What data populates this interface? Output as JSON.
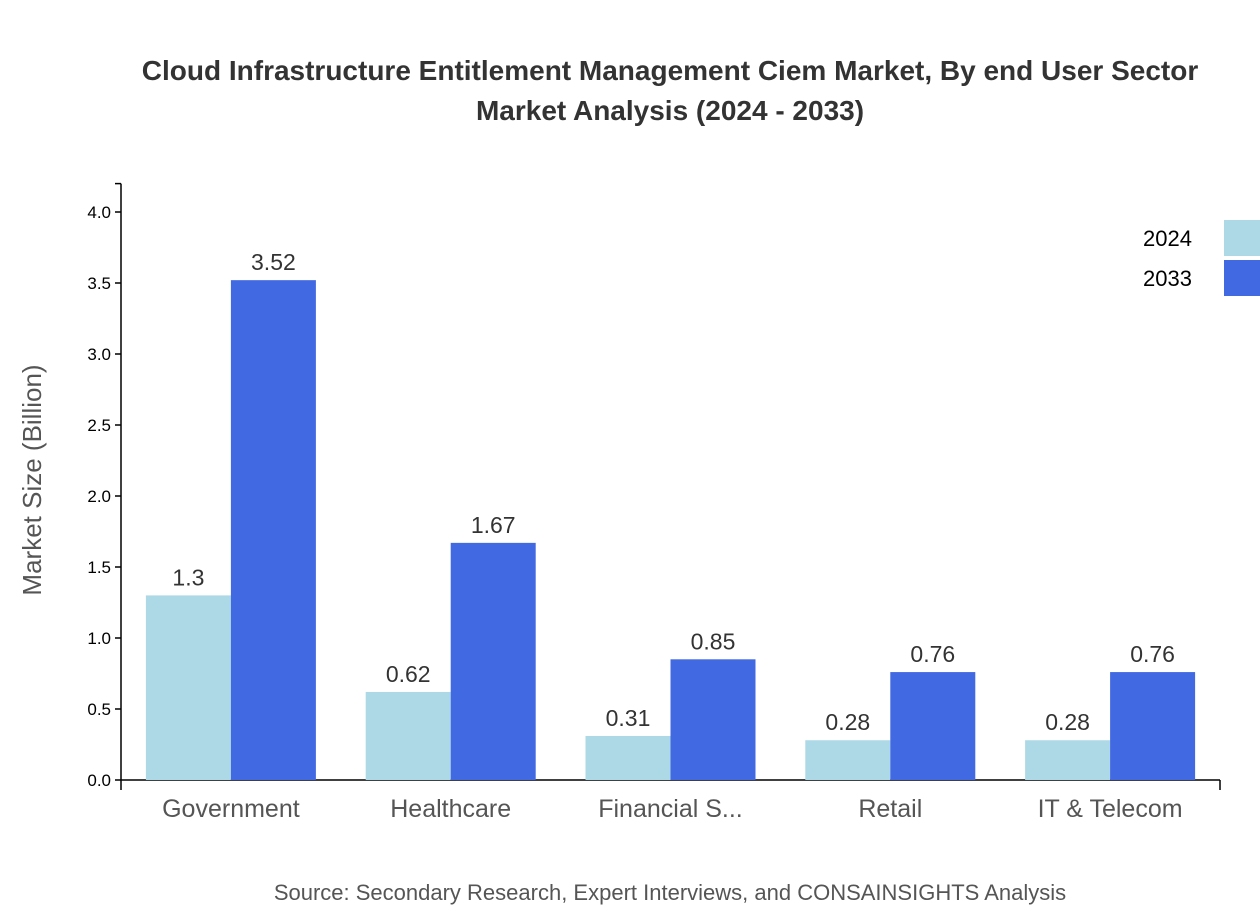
{
  "chart_data": {
    "type": "bar",
    "title_line1": "Cloud Infrastructure Entitlement Management Ciem Market, By end User Sector",
    "title_line2": "Market Analysis (2024 - 2033)",
    "ylabel": "Market Size (Billion)",
    "xlabel": "",
    "ylim": [
      0,
      4.2
    ],
    "yticks": [
      "0.0",
      "0.5",
      "1.0",
      "1.5",
      "2.0",
      "2.5",
      "3.0",
      "3.5",
      "4.0"
    ],
    "categories": [
      "Government",
      "Healthcare",
      "Financial S...",
      "Retail",
      "IT & Telecom"
    ],
    "series": [
      {
        "name": "2024",
        "color": "#add8e6",
        "values": [
          1.3,
          0.62,
          0.31,
          0.28,
          0.28
        ]
      },
      {
        "name": "2033",
        "color": "#4169e1",
        "values": [
          3.52,
          1.67,
          0.85,
          0.76,
          0.76
        ]
      }
    ],
    "legend_position": "top-right",
    "grid": false,
    "source": "Source: Secondary Research, Expert Interviews, and CONSAINSIGHTS Analysis"
  }
}
